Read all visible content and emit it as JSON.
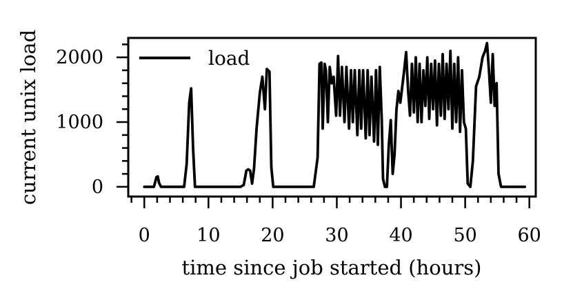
{
  "chart_data": {
    "type": "line",
    "title": "",
    "xlabel": "time since job started (hours)",
    "ylabel": "current unix load",
    "xlim": [
      -2.5,
      61
    ],
    "ylim": [
      -150,
      2300
    ],
    "x_ticks": [
      0,
      10,
      20,
      30,
      40,
      50,
      60
    ],
    "y_ticks": [
      0,
      1000,
      2000
    ],
    "x_minor_step": 2,
    "y_minor_step": 200,
    "grid": false,
    "legend_position": "top-left",
    "series": [
      {
        "name": "load",
        "color": "#000000",
        "x": [
          0,
          1.5,
          1.9,
          2.1,
          2.3,
          2.6,
          3,
          4,
          5,
          6.2,
          6.6,
          7.0,
          7.3,
          7.6,
          7.9,
          8.3,
          9,
          12,
          15,
          15.5,
          15.9,
          16.2,
          16.5,
          16.8,
          17.1,
          17.5,
          18,
          18.4,
          18.8,
          19.1,
          19.5,
          19.8,
          20.1,
          20.6,
          22,
          24,
          25.5,
          26.4,
          27,
          27.3,
          27.6,
          27.8,
          28.1,
          28.3,
          28.6,
          28.9,
          29.2,
          29.5,
          29.9,
          30.2,
          30.5,
          30.8,
          31.2,
          31.5,
          31.9,
          32.2,
          32.5,
          32.8,
          33.2,
          33.5,
          33.8,
          34.1,
          34.5,
          34.8,
          35.1,
          35.4,
          35.8,
          36.1,
          36.4,
          36.7,
          37.0,
          37.2,
          37.5,
          37.8,
          38.1,
          38.4,
          38.7,
          39.0,
          39.3,
          39.6,
          39.9,
          40.2,
          40.5,
          40.8,
          41.1,
          41.4,
          41.7,
          42.0,
          42.3,
          42.6,
          42.9,
          43.2,
          43.5,
          43.8,
          44.1,
          44.4,
          44.7,
          45.0,
          45.3,
          45.6,
          45.9,
          46.2,
          46.5,
          46.8,
          47.1,
          47.4,
          47.7,
          48.0,
          48.3,
          48.6,
          48.9,
          49.2,
          49.5,
          49.8,
          50.1,
          50.4,
          50.8,
          51.2,
          51.7,
          52.2,
          52.7,
          53.1,
          53.4,
          53.7,
          54.0,
          54.3,
          54.6,
          54.9,
          55.2,
          55.6,
          56,
          58,
          59.3
        ],
        "y": [
          0,
          0,
          150,
          160,
          60,
          0,
          0,
          0,
          0,
          0,
          350,
          1300,
          1520,
          600,
          0,
          0,
          0,
          0,
          0,
          30,
          250,
          270,
          250,
          50,
          280,
          900,
          1450,
          1700,
          1200,
          1820,
          1780,
          300,
          0,
          0,
          0,
          0,
          0,
          0,
          450,
          1900,
          1920,
          900,
          1900,
          1800,
          1000,
          1850,
          1600,
          1700,
          1100,
          2020,
          1100,
          1850,
          1000,
          1850,
          900,
          1800,
          1000,
          1800,
          800,
          1800,
          900,
          1800,
          750,
          1800,
          800,
          1700,
          700,
          1800,
          650,
          1850,
          1050,
          120,
          0,
          0,
          650,
          1030,
          200,
          500,
          1200,
          1480,
          1300,
          1550,
          1800,
          2080,
          1500,
          1100,
          1900,
          1150,
          2000,
          1000,
          1900,
          1000,
          1800,
          1250,
          2000,
          1050,
          1900,
          1200,
          1950,
          950,
          1900,
          1100,
          2050,
          1050,
          1900,
          1200,
          2100,
          900,
          1900,
          1000,
          2000,
          850,
          1800,
          1000,
          900,
          50,
          0,
          400,
          1550,
          1700,
          2000,
          2100,
          2220,
          1800,
          1300,
          2050,
          1250,
          1600,
          200,
          0,
          0,
          0,
          0
        ]
      }
    ]
  }
}
